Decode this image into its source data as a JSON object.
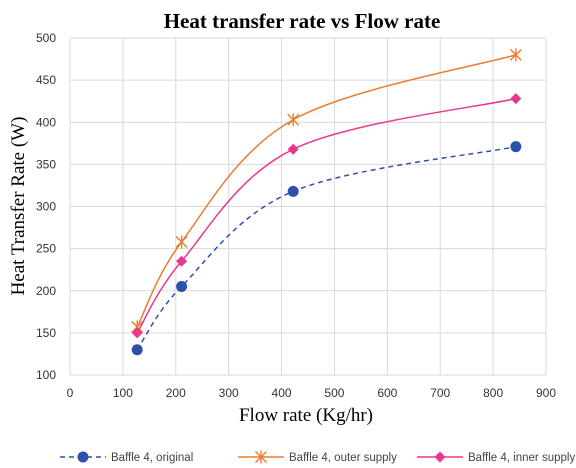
{
  "chart_data": {
    "type": "line",
    "title": "Heat transfer rate vs Flow rate",
    "xlabel": "Flow rate (Kg/hr)",
    "ylabel": "Heat Transfer Rate (W)",
    "xlim": [
      0,
      900
    ],
    "ylim": [
      100,
      500
    ],
    "xticks": [
      "0",
      "100",
      "200",
      "300",
      "400",
      "500",
      "600",
      "700",
      "800",
      "900"
    ],
    "yticks": [
      "100",
      "150",
      "200",
      "250",
      "300",
      "350",
      "400",
      "450",
      "500"
    ],
    "grid": "vertical and horizontal",
    "legend": "bottom",
    "series": [
      {
        "name": "Baffle 4, original",
        "color": "#2f4fad",
        "marker": "circle",
        "line": "dashed",
        "x": [
          127,
          211,
          422,
          843
        ],
        "y": [
          130,
          205,
          318,
          371
        ]
      },
      {
        "name": "Baffle 4, outer supply",
        "color": "#ed7d31",
        "marker": "star",
        "line": "solid",
        "x": [
          127,
          211,
          422,
          843
        ],
        "y": [
          157,
          258,
          403,
          480
        ]
      },
      {
        "name": "Baffle 4, inner supply",
        "color": "#e8388e",
        "marker": "diamond",
        "line": "solid",
        "x": [
          127,
          211,
          422,
          843
        ],
        "y": [
          150,
          235,
          368,
          428
        ]
      }
    ]
  }
}
